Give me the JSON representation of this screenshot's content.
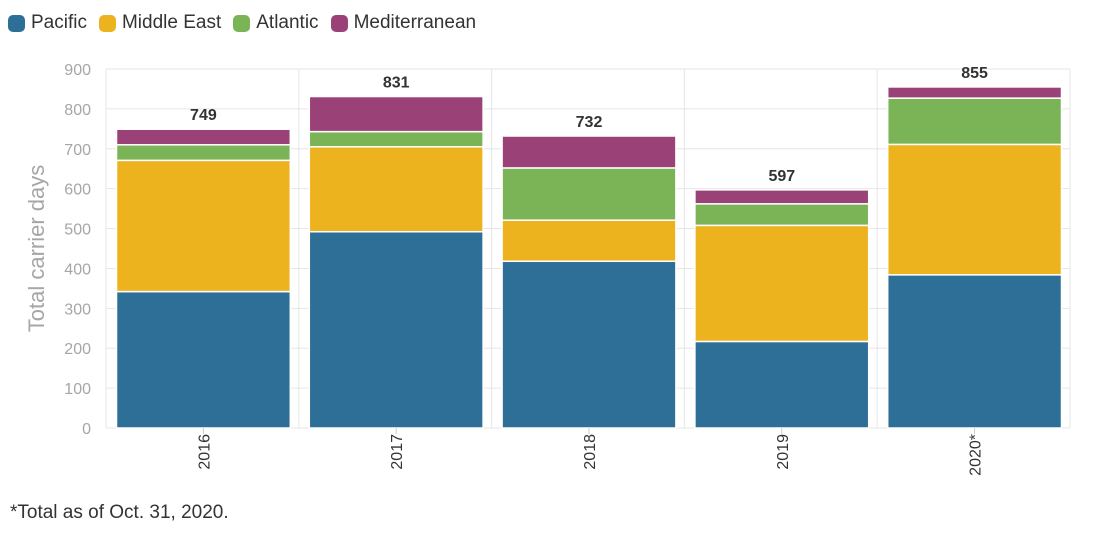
{
  "legend_labels": [
    "Pacific",
    "Middle East",
    "Atlantic",
    "Mediterranean"
  ],
  "footnote": "*Total as of Oct. 31, 2020.",
  "colors": {
    "Pacific": "#2e6f98",
    "Middle East": "#edb31f",
    "Atlantic": "#7ab457",
    "Mediterranean": "#9a4277",
    "grid": "#e6e6e6",
    "axis_text": "#a6a6a6",
    "total_text": "#333333"
  },
  "chart_data": {
    "type": "bar",
    "stacked": true,
    "categories": [
      "2016",
      "2017",
      "2018",
      "2019",
      "2020*"
    ],
    "series": [
      {
        "name": "Pacific",
        "values": [
          342,
          492,
          418,
          217,
          384
        ]
      },
      {
        "name": "Middle East",
        "values": [
          329,
          213,
          103,
          291,
          327
        ]
      },
      {
        "name": "Atlantic",
        "values": [
          39,
          38,
          131,
          54,
          116
        ]
      },
      {
        "name": "Mediterranean",
        "values": [
          39,
          88,
          80,
          35,
          28
        ]
      }
    ],
    "totals": [
      749,
      831,
      732,
      597,
      855
    ],
    "ylabel": "Total carrier days",
    "xlabel": "",
    "ylim": [
      0,
      900
    ],
    "yticks": [
      0,
      100,
      200,
      300,
      400,
      500,
      600,
      700,
      800,
      900
    ],
    "grid": true,
    "legend_position": "top-left"
  }
}
